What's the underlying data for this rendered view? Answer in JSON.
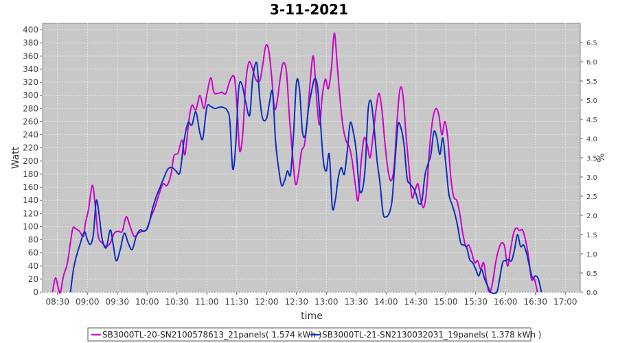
{
  "chart_data": {
    "type": "line",
    "title": "3-11-2021",
    "xlabel": "time",
    "ylabel": "Watt",
    "y2label": "%",
    "xticks": [
      "08:30",
      "09:00",
      "09:30",
      "10:00",
      "10:30",
      "11:00",
      "11:30",
      "12:00",
      "12:30",
      "13:00",
      "13:30",
      "14:00",
      "14:30",
      "15:00",
      "15:30",
      "16:00",
      "16:30",
      "17:00"
    ],
    "xlim": [
      "08:15",
      "17:15"
    ],
    "ylim": [
      0,
      410
    ],
    "yticks": [
      0,
      20,
      40,
      60,
      80,
      100,
      120,
      140,
      160,
      180,
      200,
      220,
      240,
      260,
      280,
      300,
      320,
      340,
      360,
      380,
      400
    ],
    "y2lim": [
      0,
      7.0
    ],
    "y2ticks": [
      "0.0",
      "0.5",
      "1.0",
      "1.5",
      "2.0",
      "2.5",
      "3.0",
      "3.5",
      "4.0",
      "4.5",
      "5.0",
      "5.5",
      "6.0",
      "6.5"
    ],
    "grid": true,
    "legend_position": "bottom",
    "colors": {
      "plot_background": "#c8c8c8",
      "grid": "#e8e8e8",
      "series1": "#cc00cc",
      "series2": "#0a2fc0"
    },
    "series": [
      {
        "name": "SB3000TL-20-SN2100578613_21panels( 1.574 kWh )",
        "color": "#cc00cc",
        "points": [
          [
            "08:25",
            0
          ],
          [
            "08:28",
            22
          ],
          [
            "08:31",
            5
          ],
          [
            "08:33",
            0
          ],
          [
            "08:36",
            25
          ],
          [
            "08:40",
            45
          ],
          [
            "08:45",
            95
          ],
          [
            "08:48",
            97
          ],
          [
            "08:52",
            93
          ],
          [
            "08:56",
            85
          ],
          [
            "08:58",
            105
          ],
          [
            "09:01",
            125
          ],
          [
            "09:05",
            163
          ],
          [
            "09:08",
            130
          ],
          [
            "09:11",
            85
          ],
          [
            "09:15",
            75
          ],
          [
            "09:19",
            70
          ],
          [
            "09:23",
            75
          ],
          [
            "09:27",
            90
          ],
          [
            "09:31",
            93
          ],
          [
            "09:35",
            93
          ],
          [
            "09:39",
            115
          ],
          [
            "09:43",
            100
          ],
          [
            "09:47",
            85
          ],
          [
            "09:51",
            90
          ],
          [
            "09:55",
            93
          ],
          [
            "09:59",
            95
          ],
          [
            "10:04",
            115
          ],
          [
            "10:08",
            130
          ],
          [
            "10:12",
            150
          ],
          [
            "10:16",
            165
          ],
          [
            "10:20",
            163
          ],
          [
            "10:24",
            180
          ],
          [
            "10:27",
            208
          ],
          [
            "10:31",
            212
          ],
          [
            "10:35",
            232
          ],
          [
            "10:38",
            210
          ],
          [
            "10:42",
            262
          ],
          [
            "10:45",
            285
          ],
          [
            "10:49",
            278
          ],
          [
            "10:53",
            300
          ],
          [
            "10:57",
            280
          ],
          [
            "11:00",
            302
          ],
          [
            "11:04",
            327
          ],
          [
            "11:07",
            305
          ],
          [
            "11:11",
            303
          ],
          [
            "11:15",
            305
          ],
          [
            "11:19",
            303
          ],
          [
            "11:23",
            322
          ],
          [
            "11:27",
            330
          ],
          [
            "11:29",
            310
          ],
          [
            "11:31",
            265
          ],
          [
            "11:33",
            215
          ],
          [
            "11:36",
            240
          ],
          [
            "11:39",
            318
          ],
          [
            "11:42",
            350
          ],
          [
            "11:45",
            345
          ],
          [
            "11:49",
            325
          ],
          [
            "11:53",
            322
          ],
          [
            "11:56",
            345
          ],
          [
            "11:59",
            375
          ],
          [
            "12:02",
            370
          ],
          [
            "12:05",
            330
          ],
          [
            "12:08",
            280
          ],
          [
            "12:11",
            295
          ],
          [
            "12:14",
            330
          ],
          [
            "12:17",
            350
          ],
          [
            "12:20",
            335
          ],
          [
            "12:23",
            265
          ],
          [
            "12:26",
            210
          ],
          [
            "12:29",
            165
          ],
          [
            "12:32",
            180
          ],
          [
            "12:35",
            215
          ],
          [
            "12:38",
            225
          ],
          [
            "12:41",
            265
          ],
          [
            "12:44",
            325
          ],
          [
            "12:47",
            360
          ],
          [
            "12:50",
            300
          ],
          [
            "12:53",
            255
          ],
          [
            "12:56",
            300
          ],
          [
            "12:59",
            325
          ],
          [
            "13:02",
            310
          ],
          [
            "13:05",
            340
          ],
          [
            "13:08",
            395
          ],
          [
            "13:11",
            345
          ],
          [
            "13:14",
            290
          ],
          [
            "13:17",
            250
          ],
          [
            "13:20",
            230
          ],
          [
            "13:23",
            222
          ],
          [
            "13:26",
            200
          ],
          [
            "13:29",
            165
          ],
          [
            "13:32",
            140
          ],
          [
            "13:35",
            200
          ],
          [
            "13:38",
            235
          ],
          [
            "13:41",
            225
          ],
          [
            "13:44",
            205
          ],
          [
            "13:47",
            240
          ],
          [
            "13:50",
            280
          ],
          [
            "13:53",
            303
          ],
          [
            "13:56",
            275
          ],
          [
            "13:59",
            225
          ],
          [
            "14:02",
            185
          ],
          [
            "14:05",
            170
          ],
          [
            "14:08",
            190
          ],
          [
            "14:11",
            260
          ],
          [
            "14:14",
            310
          ],
          [
            "14:17",
            300
          ],
          [
            "14:20",
            240
          ],
          [
            "14:23",
            190
          ],
          [
            "14:26",
            145
          ],
          [
            "14:29",
            155
          ],
          [
            "14:32",
            165
          ],
          [
            "14:35",
            140
          ],
          [
            "14:38",
            130
          ],
          [
            "14:41",
            160
          ],
          [
            "14:44",
            225
          ],
          [
            "14:47",
            265
          ],
          [
            "14:50",
            280
          ],
          [
            "14:53",
            270
          ],
          [
            "14:56",
            240
          ],
          [
            "14:59",
            260
          ],
          [
            "15:02",
            235
          ],
          [
            "15:05",
            175
          ],
          [
            "15:08",
            145
          ],
          [
            "15:11",
            140
          ],
          [
            "15:14",
            120
          ],
          [
            "15:17",
            90
          ],
          [
            "15:20",
            70
          ],
          [
            "15:23",
            72
          ],
          [
            "15:26",
            60
          ],
          [
            "15:29",
            45
          ],
          [
            "15:32",
            48
          ],
          [
            "15:35",
            35
          ],
          [
            "15:38",
            45
          ],
          [
            "15:41",
            15
          ],
          [
            "15:44",
            0
          ],
          [
            "15:47",
            15
          ],
          [
            "15:50",
            45
          ],
          [
            "15:53",
            65
          ],
          [
            "15:56",
            75
          ],
          [
            "15:59",
            70
          ],
          [
            "16:02",
            40
          ],
          [
            "16:05",
            65
          ],
          [
            "16:08",
            90
          ],
          [
            "16:11",
            98
          ],
          [
            "16:14",
            94
          ],
          [
            "16:17",
            95
          ],
          [
            "16:20",
            80
          ],
          [
            "16:23",
            55
          ],
          [
            "16:26",
            20
          ],
          [
            "16:29",
            20
          ],
          [
            "16:32",
            0
          ]
        ]
      },
      {
        "name": "SB3000TL-21-SN2130032031_19panels( 1.378 kWh )",
        "color": "#0a2fc0",
        "points": [
          [
            "08:43",
            0
          ],
          [
            "08:46",
            35
          ],
          [
            "08:49",
            55
          ],
          [
            "08:53",
            75
          ],
          [
            "08:57",
            92
          ],
          [
            "09:00",
            80
          ],
          [
            "09:03",
            73
          ],
          [
            "09:06",
            88
          ],
          [
            "09:09",
            140
          ],
          [
            "09:12",
            115
          ],
          [
            "09:15",
            80
          ],
          [
            "09:19",
            68
          ],
          [
            "09:23",
            95
          ],
          [
            "09:26",
            72
          ],
          [
            "09:29",
            48
          ],
          [
            "09:33",
            65
          ],
          [
            "09:37",
            90
          ],
          [
            "09:41",
            75
          ],
          [
            "09:45",
            65
          ],
          [
            "09:49",
            85
          ],
          [
            "09:53",
            95
          ],
          [
            "09:57",
            93
          ],
          [
            "10:01",
            100
          ],
          [
            "10:05",
            125
          ],
          [
            "10:09",
            145
          ],
          [
            "10:13",
            160
          ],
          [
            "10:17",
            175
          ],
          [
            "10:21",
            188
          ],
          [
            "10:25",
            190
          ],
          [
            "10:29",
            185
          ],
          [
            "10:33",
            183
          ],
          [
            "10:37",
            230
          ],
          [
            "10:41",
            258
          ],
          [
            "10:45",
            255
          ],
          [
            "10:49",
            275
          ],
          [
            "10:53",
            243
          ],
          [
            "10:56",
            235
          ],
          [
            "11:00",
            282
          ],
          [
            "11:04",
            283
          ],
          [
            "11:08",
            280
          ],
          [
            "11:12",
            282
          ],
          [
            "11:16",
            282
          ],
          [
            "11:20",
            278
          ],
          [
            "11:23",
            262
          ],
          [
            "11:26",
            188
          ],
          [
            "11:29",
            225
          ],
          [
            "11:32",
            310
          ],
          [
            "11:35",
            318
          ],
          [
            "11:39",
            290
          ],
          [
            "11:43",
            270
          ],
          [
            "11:46",
            325
          ],
          [
            "11:50",
            350
          ],
          [
            "11:53",
            298
          ],
          [
            "11:56",
            265
          ],
          [
            "12:00",
            265
          ],
          [
            "12:03",
            290
          ],
          [
            "12:06",
            305
          ],
          [
            "12:09",
            230
          ],
          [
            "12:12",
            190
          ],
          [
            "12:15",
            163
          ],
          [
            "12:18",
            170
          ],
          [
            "12:21",
            185
          ],
          [
            "12:24",
            180
          ],
          [
            "12:27",
            240
          ],
          [
            "12:30",
            320
          ],
          [
            "12:33",
            310
          ],
          [
            "12:36",
            245
          ],
          [
            "12:39",
            240
          ],
          [
            "12:42",
            280
          ],
          [
            "12:45",
            305
          ],
          [
            "12:48",
            325
          ],
          [
            "12:51",
            315
          ],
          [
            "12:54",
            260
          ],
          [
            "12:57",
            200
          ],
          [
            "13:00",
            185
          ],
          [
            "13:03",
            210
          ],
          [
            "13:06",
            130
          ],
          [
            "13:09",
            140
          ],
          [
            "13:12",
            175
          ],
          [
            "13:15",
            190
          ],
          [
            "13:18",
            180
          ],
          [
            "13:21",
            215
          ],
          [
            "13:24",
            258
          ],
          [
            "13:27",
            245
          ],
          [
            "13:30",
            215
          ],
          [
            "13:33",
            160
          ],
          [
            "13:36",
            155
          ],
          [
            "13:39",
            190
          ],
          [
            "13:42",
            278
          ],
          [
            "13:45",
            290
          ],
          [
            "13:48",
            250
          ],
          [
            "13:51",
            200
          ],
          [
            "13:54",
            165
          ],
          [
            "13:57",
            120
          ],
          [
            "14:00",
            115
          ],
          [
            "14:03",
            120
          ],
          [
            "14:06",
            140
          ],
          [
            "14:09",
            200
          ],
          [
            "14:12",
            255
          ],
          [
            "14:15",
            250
          ],
          [
            "14:18",
            225
          ],
          [
            "14:21",
            175
          ],
          [
            "14:24",
            165
          ],
          [
            "14:27",
            160
          ],
          [
            "14:30",
            150
          ],
          [
            "14:33",
            135
          ],
          [
            "14:36",
            140
          ],
          [
            "14:39",
            178
          ],
          [
            "14:42",
            195
          ],
          [
            "14:45",
            210
          ],
          [
            "14:48",
            245
          ],
          [
            "14:51",
            235
          ],
          [
            "14:54",
            210
          ],
          [
            "14:57",
            235
          ],
          [
            "15:00",
            195
          ],
          [
            "15:03",
            150
          ],
          [
            "15:06",
            135
          ],
          [
            "15:09",
            120
          ],
          [
            "15:12",
            100
          ],
          [
            "15:15",
            75
          ],
          [
            "15:18",
            72
          ],
          [
            "15:21",
            68
          ],
          [
            "15:24",
            50
          ],
          [
            "15:27",
            45
          ],
          [
            "15:30",
            35
          ],
          [
            "15:33",
            25
          ],
          [
            "15:36",
            35
          ],
          [
            "15:39",
            20
          ],
          [
            "15:42",
            10
          ],
          [
            "15:45",
            0
          ],
          [
            "15:51",
            0
          ],
          [
            "15:54",
            20
          ],
          [
            "15:57",
            45
          ],
          [
            "16:00",
            48
          ],
          [
            "16:03",
            50
          ],
          [
            "16:06",
            48
          ],
          [
            "16:09",
            65
          ],
          [
            "16:12",
            88
          ],
          [
            "16:15",
            70
          ],
          [
            "16:18",
            72
          ],
          [
            "16:21",
            60
          ],
          [
            "16:24",
            40
          ],
          [
            "16:27",
            22
          ],
          [
            "16:30",
            25
          ],
          [
            "16:33",
            20
          ],
          [
            "16:36",
            0
          ]
        ]
      }
    ]
  }
}
